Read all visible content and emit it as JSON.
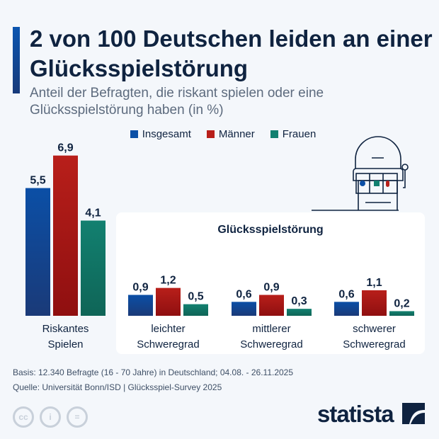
{
  "title": "2 von 100 Deutschen leiden an einer Glücksspielstörung",
  "subtitle": "Anteil der Befragten, die riskant spielen oder eine Glücksspielstörung haben (in %)",
  "panel_title": "Glücksspielstörung",
  "footer": {
    "basis": "Basis: 12.340 Befragte (16 - 70 Jahre) in Deutschland; 04.08. - 26.11.2025",
    "source": "Quelle: Universität Bonn/ISD | Glücksspiel-Survey 2025",
    "brand": "statista"
  },
  "icons": [
    "cc-icon",
    "by-icon",
    "nd-icon",
    "slot-machine-icon",
    "statista-logo-icon"
  ],
  "chart_data": {
    "type": "bar",
    "categories": [
      "Riskantes Spielen",
      "leichter Schweregrad",
      "mittlerer Schweregrad",
      "schwerer Schweregrad"
    ],
    "series": [
      {
        "name": "Insgesamt",
        "color": "#0b4fa6",
        "values": [
          5.5,
          0.9,
          0.6,
          0.6
        ],
        "labels": [
          "5,5",
          "0,9",
          "0,6",
          "0,6"
        ]
      },
      {
        "name": "Männer",
        "color": "#b81f1a",
        "values": [
          6.9,
          1.2,
          0.9,
          1.1
        ],
        "labels": [
          "6,9",
          "1,2",
          "0,9",
          "1,1"
        ]
      },
      {
        "name": "Frauen",
        "color": "#128070",
        "values": [
          4.1,
          0.5,
          0.3,
          0.2
        ],
        "labels": [
          "4,1",
          "0,5",
          "0,3",
          "0,2"
        ]
      }
    ],
    "ylabel": "",
    "xlabel": "",
    "ylim": [
      0,
      7
    ],
    "grid": false,
    "legend": "top"
  }
}
